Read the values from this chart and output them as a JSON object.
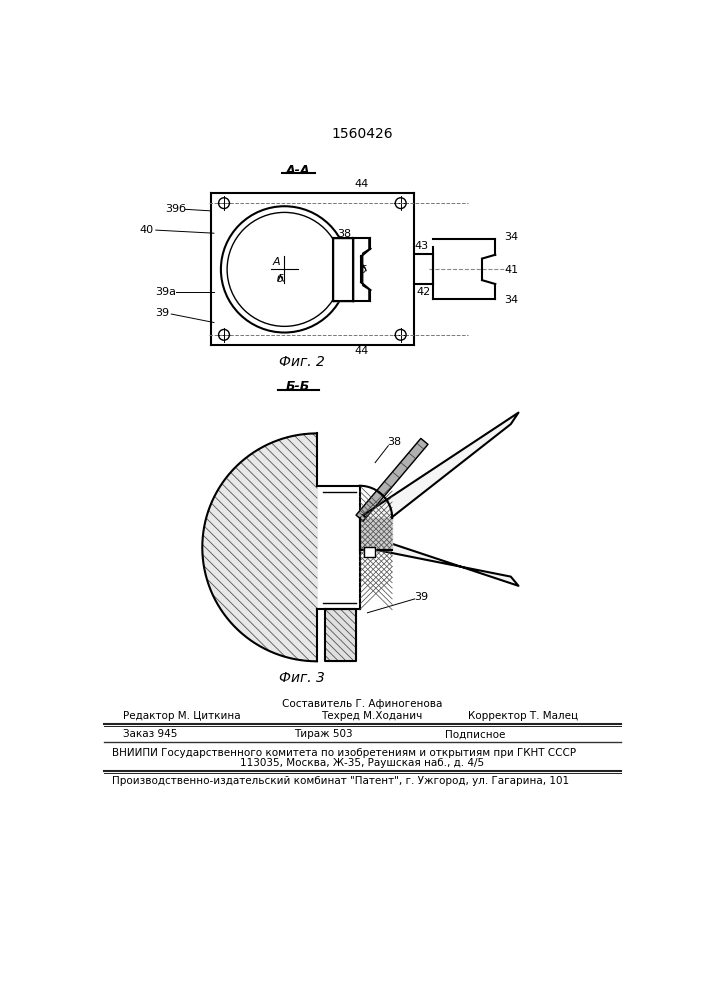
{
  "patent_number": "1560426",
  "fig2_label": "А-А",
  "fig3_label": "Б-Б",
  "fig2_caption": "Фиг. 2",
  "fig3_caption": "Фиг. 3",
  "footer": {
    "line1_center": "Составитель Г. Афиногенова",
    "line2_left": "Редактор М. Циткина",
    "line2_center": "Техред М.Ходанич",
    "line2_right": "Корректор Т. Малец",
    "line3_left": "Заказ 945",
    "line3_center": "Тираж 503",
    "line3_right": "Подписное",
    "line4": "ВНИИПИ Государственного комитета по изобретениям и открытиям при ГКНТ СССР",
    "line5": "113035, Москва, Ж-35, Раушская наб., д. 4/5",
    "line6": "Производственно-издательский комбинат \"Патент\", г. Ужгород, ул. Гагарина, 101"
  }
}
